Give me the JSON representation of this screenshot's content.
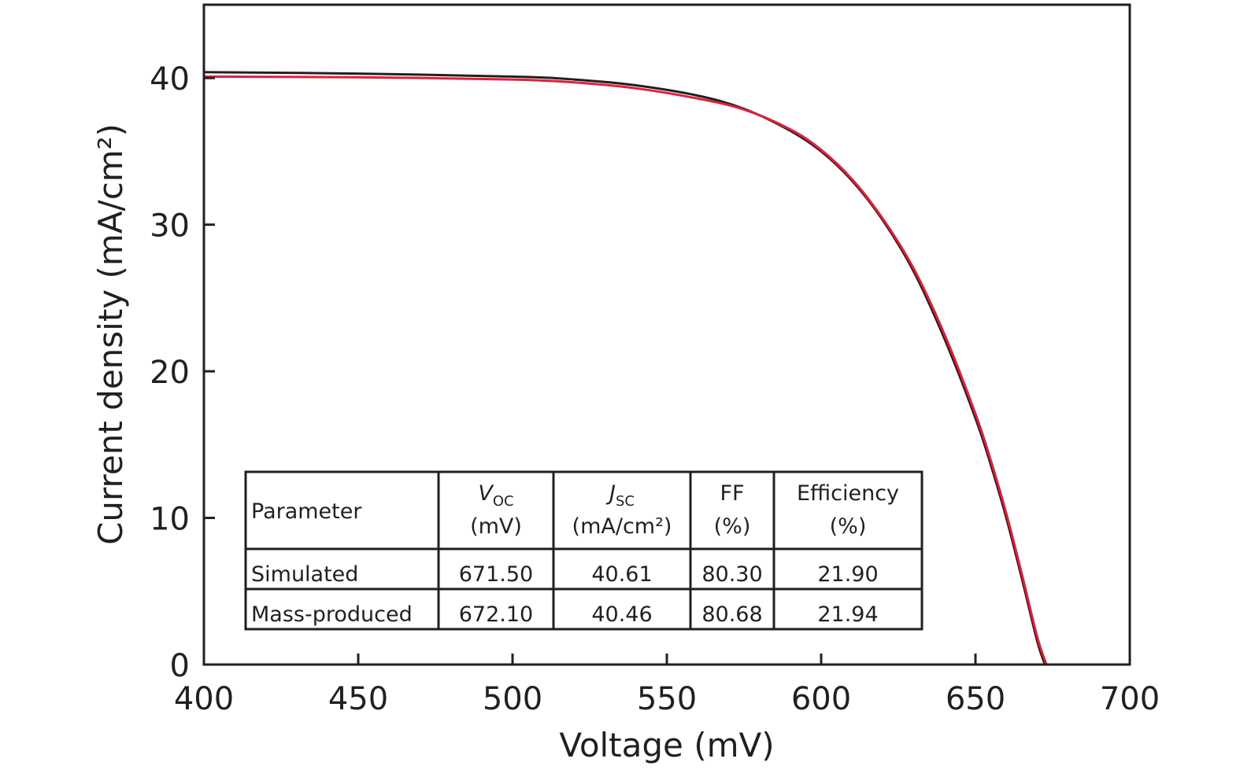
{
  "chart_data": {
    "type": "line",
    "xlabel": "Voltage (mV)",
    "ylabel": "Current density (mA/cm²)",
    "xlim": [
      400,
      700
    ],
    "ylim": [
      0,
      45
    ],
    "xticks": [
      400,
      450,
      500,
      550,
      600,
      650,
      700
    ],
    "yticks": [
      0,
      10,
      20,
      30,
      40
    ],
    "grid": false,
    "series": [
      {
        "color": "#231f20",
        "x": [
          400,
          450,
          500,
          520,
          540,
          560,
          575,
          590,
          600,
          610,
          620,
          630,
          640,
          650,
          655,
          660,
          665,
          670,
          672.5
        ],
        "y": [
          40.4,
          40.3,
          40.1,
          39.9,
          39.5,
          38.8,
          37.9,
          36.4,
          35.0,
          33.0,
          30.3,
          26.8,
          22.2,
          16.8,
          13.6,
          10.0,
          5.9,
          1.6,
          0
        ]
      },
      {
        "color": "#e0203a",
        "x": [
          400,
          450,
          500,
          520,
          540,
          560,
          575,
          590,
          600,
          610,
          620,
          630,
          640,
          650,
          655,
          660,
          665,
          670,
          673
        ],
        "y": [
          40.1,
          40.05,
          39.9,
          39.7,
          39.3,
          38.6,
          37.85,
          36.5,
          35.1,
          33.1,
          30.4,
          27.0,
          22.5,
          17.1,
          13.9,
          10.3,
          6.2,
          1.9,
          0
        ]
      }
    ],
    "inset_table": {
      "headers": [
        {
          "main": "Parameter",
          "sub": "",
          "unit": ""
        },
        {
          "main": "V",
          "sub": "OC",
          "unit": "(mV)"
        },
        {
          "main": "J",
          "sub": "SC",
          "unit": "(mA/cm²)"
        },
        {
          "main": "FF",
          "sub": "",
          "unit": "(%)"
        },
        {
          "main": "Efficiency",
          "sub": "",
          "unit": "(%)"
        }
      ],
      "rows": [
        [
          "Simulated",
          "671.50",
          "40.61",
          "80.30",
          "21.90"
        ],
        [
          "Mass-produced",
          "672.10",
          "40.46",
          "80.68",
          "21.94"
        ]
      ]
    }
  }
}
